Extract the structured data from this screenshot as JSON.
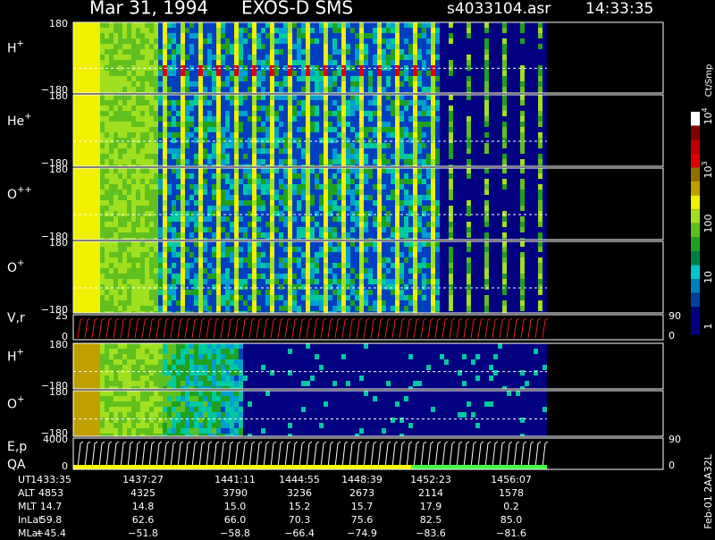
{
  "header": {
    "date": "Mar 31, 1994",
    "instrument": "EXOS-D SMS",
    "file": "s4033104.asr",
    "time": "14:33:35"
  },
  "panels": [
    {
      "label": "H",
      "sup": "+",
      "top": "180",
      "bottom": "−180"
    },
    {
      "label": "He",
      "sup": "+",
      "top": "180",
      "bottom": "−180"
    },
    {
      "label": "O",
      "sup": "++",
      "top": "180",
      "bottom": "−180"
    },
    {
      "label": "O",
      "sup": "+",
      "top": "180",
      "bottom": "−180"
    },
    {
      "label": "V,r",
      "top": "25",
      "bottom": "0",
      "right_top": "90",
      "right_bottom": "0"
    },
    {
      "label": "H",
      "sup": "+",
      "top": "180",
      "bottom": "−180"
    },
    {
      "label": "O",
      "sup": "+",
      "top": "180",
      "bottom": "−180"
    },
    {
      "label": "E,p",
      "label2": "QA",
      "top": "4000",
      "bottom": "0",
      "right_top": "90",
      "right_bottom": "0"
    }
  ],
  "colorbar": {
    "unit": "Ct/Smp",
    "labels": [
      {
        "base": "10",
        "exp": "4"
      },
      {
        "base": "10",
        "exp": "3"
      },
      {
        "base": "100"
      },
      {
        "base": "10"
      },
      {
        "base": "1"
      }
    ]
  },
  "table": {
    "rows": [
      {
        "name": "UT",
        "values": [
          "1433:35",
          "1437:27",
          "1441:11",
          "1444:55",
          "1448:39",
          "1452:23",
          "1456:07"
        ]
      },
      {
        "name": "ALT",
        "values": [
          "4853",
          "4325",
          "3790",
          "3236",
          "2673",
          "2114",
          "1578"
        ]
      },
      {
        "name": "MLT",
        "values": [
          "14.7",
          "14.8",
          "15.0",
          "15.2",
          "15.7",
          "17.9",
          "0.2"
        ]
      },
      {
        "name": "InLat",
        "values": [
          "59.8",
          "62.6",
          "66.0",
          "70.3",
          "75.6",
          "82.5",
          "85.0"
        ]
      },
      {
        "name": "MLat",
        "values": [
          "−45.4",
          "−51.8",
          "−58.8",
          "−66.4",
          "−74.9",
          "−83.6",
          "−81.6"
        ]
      }
    ]
  },
  "side_label": "Feb-01 2AA32L"
}
